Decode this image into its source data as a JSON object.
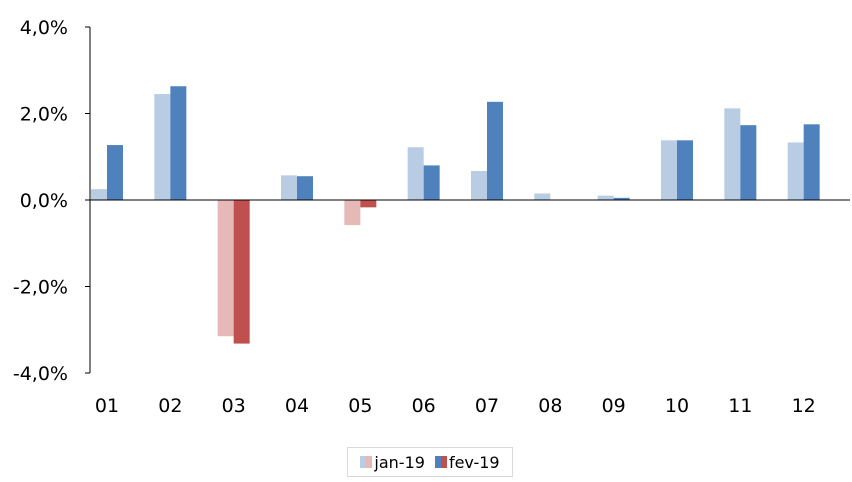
{
  "chart_data": {
    "type": "bar",
    "title": "",
    "xlabel": "",
    "ylabel": "",
    "categories": [
      "01",
      "02",
      "03",
      "04",
      "05",
      "06",
      "07",
      "08",
      "09",
      "10",
      "11",
      "12"
    ],
    "series": [
      {
        "name": "jan-19",
        "values": [
          0.25,
          2.45,
          -3.15,
          0.57,
          -0.58,
          1.22,
          0.67,
          0.15,
          0.1,
          1.38,
          2.12,
          1.33
        ]
      },
      {
        "name": "fev-19",
        "values": [
          1.27,
          2.63,
          -3.32,
          0.55,
          -0.17,
          0.8,
          2.27,
          0.0,
          0.05,
          1.38,
          1.73,
          1.75
        ]
      }
    ],
    "ylim": [
      -4,
      4
    ],
    "yticks": [
      4,
      2,
      0,
      -2,
      -4
    ],
    "ytick_labels": [
      "4,0%",
      "2,0%",
      "0,0%",
      "-2,0%",
      "-4,0%"
    ],
    "colors": {
      "positive": {
        "jan-19": "#b8cce4",
        "fev-19": "#4f81bd"
      },
      "negative": {
        "jan-19": "#e6b9b8",
        "fev-19": "#c0504d"
      }
    },
    "grid": false,
    "legend_position": "bottom"
  }
}
